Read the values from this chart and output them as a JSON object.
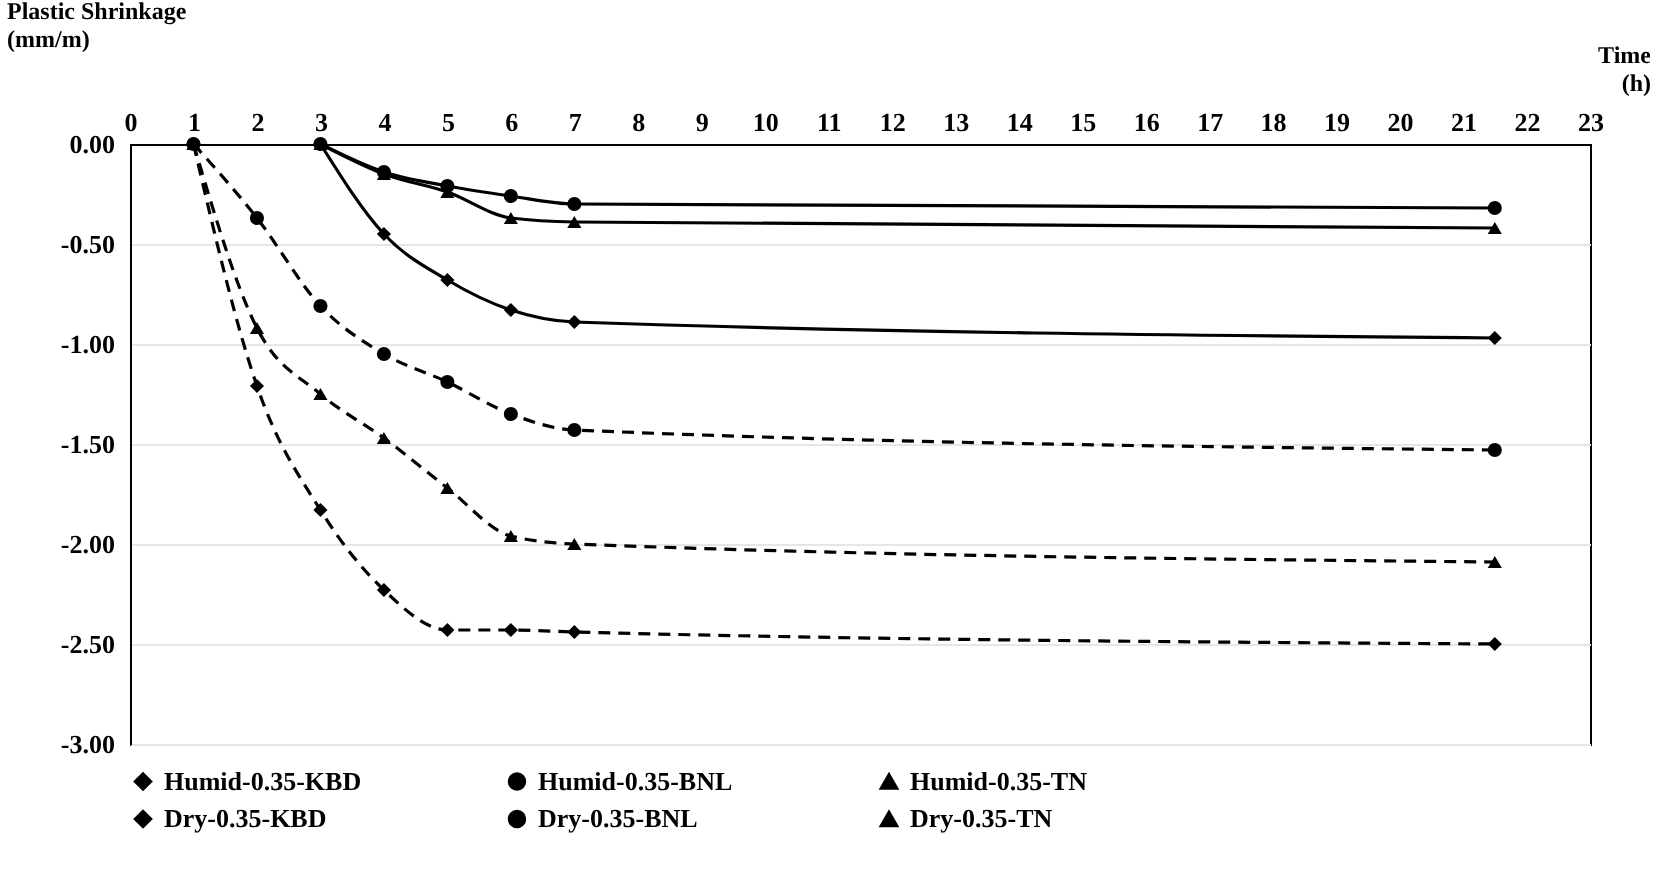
{
  "chart_data": {
    "type": "line",
    "xlabel": "Time (h)",
    "ylabel": "Plastic Shrinkage (mm/m)",
    "xlim": [
      0,
      23
    ],
    "xticks": [
      0,
      1,
      2,
      3,
      4,
      5,
      6,
      7,
      8,
      9,
      10,
      11,
      12,
      13,
      14,
      15,
      16,
      17,
      18,
      19,
      20,
      21,
      22,
      23
    ],
    "ylim": [
      -3,
      0
    ],
    "yticks": [
      {
        "value": 0,
        "label": "0.00"
      },
      {
        "value": -0.5,
        "label": "-0.50"
      },
      {
        "value": -1,
        "label": "-1.00"
      },
      {
        "value": -1.5,
        "label": "-1.50"
      },
      {
        "value": -2,
        "label": "-2.00"
      },
      {
        "value": -2.5,
        "label": "-2.50"
      },
      {
        "value": -3,
        "label": "-3.00"
      }
    ],
    "grid": "y",
    "legend": "bottom",
    "series": [
      {
        "name": "Humid-0.35-KBD",
        "color": "#000000",
        "marker": "diamond",
        "line_style": "solid",
        "x": [
          3,
          4,
          5,
          6,
          7,
          21.5
        ],
        "values": [
          0,
          -0.45,
          -0.68,
          -0.83,
          -0.89,
          -0.97
        ]
      },
      {
        "name": "Humid-0.35-BNL",
        "color": "#000000",
        "marker": "circle",
        "line_style": "solid",
        "x": [
          3,
          4,
          5,
          6,
          7,
          21.5
        ],
        "values": [
          0,
          -0.14,
          -0.21,
          -0.26,
          -0.3,
          -0.32
        ]
      },
      {
        "name": "Humid-0.35-TN",
        "color": "#000000",
        "marker": "triangle",
        "line_style": "solid",
        "x": [
          3,
          4,
          5,
          6,
          7,
          21.5
        ],
        "values": [
          0,
          -0.15,
          -0.24,
          -0.37,
          -0.39,
          -0.42
        ]
      },
      {
        "name": "Dry-0.35-KBD",
        "color": "#000000",
        "marker": "diamond",
        "line_style": "dashed",
        "x": [
          1,
          2,
          3,
          4,
          5,
          6,
          7,
          21.5
        ],
        "values": [
          0,
          -1.21,
          -1.83,
          -2.23,
          -2.43,
          -2.43,
          -2.44,
          -2.5
        ]
      },
      {
        "name": "Dry-0.35-BNL",
        "color": "#000000",
        "marker": "circle",
        "line_style": "dashed",
        "x": [
          1,
          2,
          3,
          4,
          5,
          6,
          7,
          21.5
        ],
        "values": [
          0,
          -0.37,
          -0.81,
          -1.05,
          -1.19,
          -1.35,
          -1.43,
          -1.53
        ]
      },
      {
        "name": "Dry-0.35-TN",
        "color": "#000000",
        "marker": "triangle",
        "line_style": "dashed",
        "x": [
          1,
          2,
          3,
          4,
          5,
          6,
          7,
          21.5
        ],
        "values": [
          0,
          -0.92,
          -1.25,
          -1.47,
          -1.72,
          -1.96,
          -2.0,
          -2.09
        ]
      }
    ]
  }
}
